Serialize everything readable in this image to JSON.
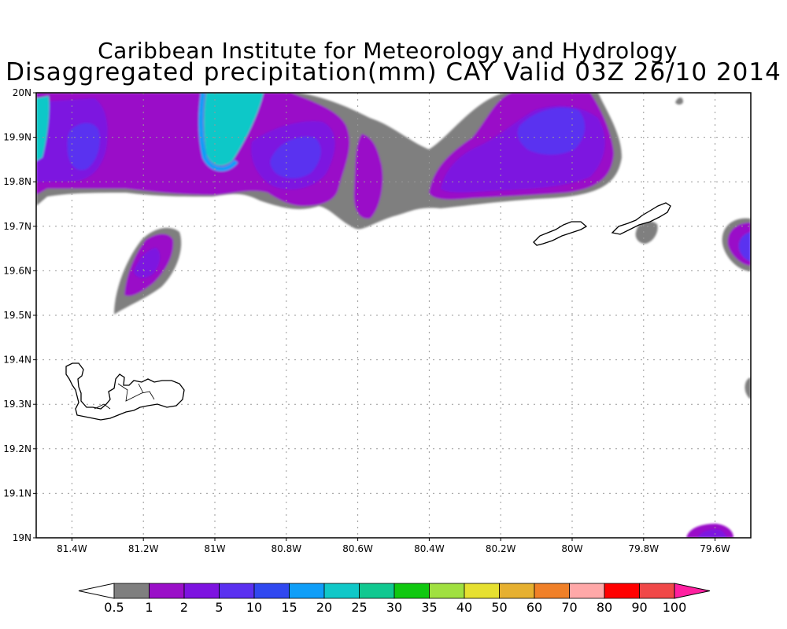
{
  "title": {
    "line1": "Caribbean Institute for Meteorology and Hydrology",
    "line2": "Disaggregated precipitation(mm) CAY Valid 03Z 26/10 2014"
  },
  "map": {
    "lon_range": [
      -81.5,
      -79.5
    ],
    "lat_range": [
      19.0,
      20.0
    ],
    "lat_labels": [
      "19N",
      "19.1N",
      "19.2N",
      "19.3N",
      "19.4N",
      "19.5N",
      "19.6N",
      "19.7N",
      "19.8N",
      "19.9N",
      "20N"
    ],
    "lon_labels": [
      "81.4W",
      "81.2W",
      "81W",
      "80.8W",
      "80.6W",
      "80.4W",
      "80.2W",
      "80W",
      "79.8W",
      "79.6W"
    ],
    "lon_values": [
      -81.4,
      -81.2,
      -81.0,
      -80.8,
      -80.6,
      -80.4,
      -80.2,
      -80.0,
      -79.8,
      -79.6
    ],
    "grid": "dotted"
  },
  "colorbar": {
    "labels": [
      "0.5",
      "1",
      "2",
      "5",
      "10",
      "15",
      "20",
      "25",
      "30",
      "35",
      "40",
      "50",
      "60",
      "70",
      "80",
      "90",
      "100"
    ],
    "colors": [
      "#7f7f7f",
      "#9a0fc8",
      "#7d13e0",
      "#5a30f0",
      "#3048f0",
      "#0f9ef8",
      "#10c8c8",
      "#10c890",
      "#10c810",
      "#a0e040",
      "#e6e030",
      "#e6b030",
      "#f08028",
      "#ffa8a8",
      "#ff0000",
      "#f04848"
    ],
    "low_color": "#ffffff",
    "high_color": "#ff20a0"
  }
}
